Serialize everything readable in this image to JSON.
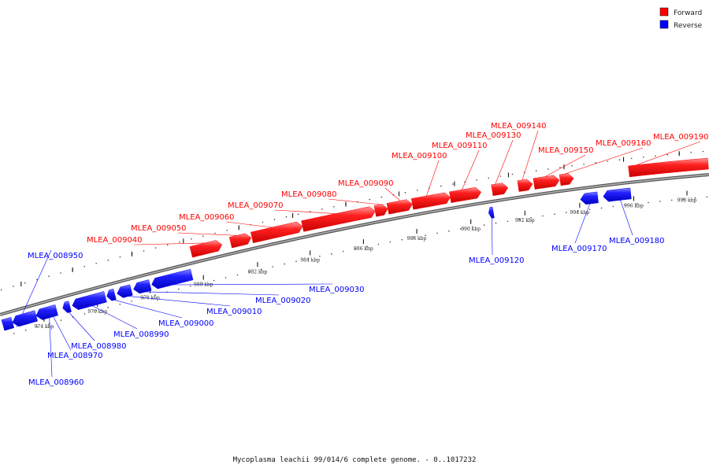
{
  "caption": "Mycoplasma leachii 99/014/6 complete genome. - 0..1017232",
  "legend": [
    {
      "label": "Forward",
      "color": "#ff0000"
    },
    {
      "label": "Reverse",
      "color": "#0000ff"
    }
  ],
  "colors": {
    "forward": "#ff0000",
    "reverse": "#0000ff",
    "backbone": "#808080",
    "leader": "#000000"
  },
  "genes": [
    {
      "name": "MLEA_008950",
      "strand": "reverse"
    },
    {
      "name": "MLEA_008960",
      "strand": "reverse"
    },
    {
      "name": "MLEA_008970",
      "strand": "reverse"
    },
    {
      "name": "MLEA_008980",
      "strand": "reverse"
    },
    {
      "name": "MLEA_008990",
      "strand": "reverse"
    },
    {
      "name": "MLEA_009000",
      "strand": "reverse"
    },
    {
      "name": "MLEA_009010",
      "strand": "reverse"
    },
    {
      "name": "MLEA_009020",
      "strand": "reverse"
    },
    {
      "name": "MLEA_009030",
      "strand": "reverse"
    },
    {
      "name": "MLEA_009040",
      "strand": "forward"
    },
    {
      "name": "MLEA_009050",
      "strand": "forward"
    },
    {
      "name": "MLEA_009060",
      "strand": "forward"
    },
    {
      "name": "MLEA_009070",
      "strand": "forward"
    },
    {
      "name": "MLEA_009080",
      "strand": "forward"
    },
    {
      "name": "MLEA_009090",
      "strand": "forward"
    },
    {
      "name": "MLEA_009100",
      "strand": "forward"
    },
    {
      "name": "MLEA_009110",
      "strand": "forward"
    },
    {
      "name": "MLEA_009120",
      "strand": "reverse"
    },
    {
      "name": "MLEA_009130",
      "strand": "forward"
    },
    {
      "name": "MLEA_009140",
      "strand": "forward"
    },
    {
      "name": "MLEA_009150",
      "strand": "forward"
    },
    {
      "name": "MLEA_009160",
      "strand": "forward"
    },
    {
      "name": "MLEA_009170",
      "strand": "reverse"
    },
    {
      "name": "MLEA_009180",
      "strand": "reverse"
    },
    {
      "name": "MLEA_009190",
      "strand": "forward"
    }
  ],
  "ticks": [
    "974 kbp",
    "976 kbp",
    "978 kbp",
    "980 kbp",
    "982 kbp",
    "984 kbp",
    "986 kbp",
    "988 kbp",
    "990 kbp",
    "992 kbp",
    "994 kbp",
    "996 kbp",
    "998 kbp"
  ]
}
